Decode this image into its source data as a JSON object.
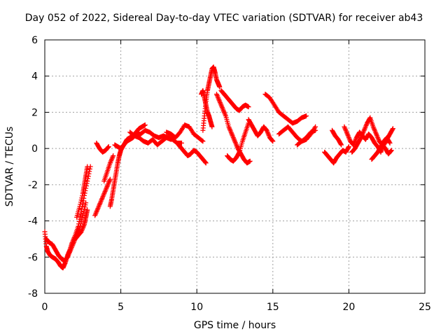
{
  "chart_data": {
    "type": "scatter",
    "title": "Day 052 of 2022, Sidereal Day-to-day VTEC variation (SDTVAR) for receiver ab43",
    "xlabel": "GPS time / hours",
    "ylabel": "SDTVAR / TECUs",
    "xlim": [
      0,
      25
    ],
    "ylim": [
      -8,
      6
    ],
    "xticks": [
      0,
      5,
      10,
      15,
      20,
      25
    ],
    "yticks": [
      -8,
      -6,
      -4,
      -2,
      0,
      2,
      4,
      6
    ],
    "grid": true,
    "marker": "+",
    "series": [
      {
        "name": "SDTVAR",
        "color": "#ff0000",
        "trace": [
          {
            "x": [
              0.0,
              0.1,
              0.2,
              0.35,
              0.5,
              0.7,
              0.9,
              1.05,
              1.2,
              1.35,
              1.5,
              1.65,
              1.8,
              2.0,
              2.2,
              2.4,
              2.6,
              2.8,
              3.0
            ],
            "y": [
              -4.6,
              -5.4,
              -5.7,
              -5.9,
              -6.0,
              -6.1,
              -6.3,
              -6.5,
              -6.6,
              -6.3,
              -5.9,
              -5.6,
              -5.2,
              -4.8,
              -4.3,
              -3.5,
              -2.6,
              -1.8,
              -1.0
            ]
          },
          {
            "x": [
              0.1,
              0.3,
              0.5,
              0.7,
              0.9,
              1.1,
              1.3,
              1.5,
              1.7,
              1.9,
              2.1,
              2.3,
              2.5,
              2.7
            ],
            "y": [
              -5.0,
              -5.2,
              -5.3,
              -5.6,
              -5.9,
              -6.1,
              -6.2,
              -6.0,
              -5.6,
              -5.2,
              -4.8,
              -4.4,
              -3.7,
              -3.0
            ]
          },
          {
            "x": [
              2.0,
              2.2,
              2.4,
              2.6,
              2.7,
              2.8
            ],
            "y": [
              -5.0,
              -4.8,
              -4.6,
              -4.2,
              -3.8,
              -3.4
            ]
          },
          {
            "x": [
              2.1,
              2.3,
              2.5,
              2.6,
              2.7,
              2.8
            ],
            "y": [
              -3.8,
              -3.2,
              -2.5,
              -2.0,
              -1.5,
              -1.0
            ]
          },
          {
            "x": [
              3.3,
              3.5,
              3.7,
              3.9,
              4.1,
              4.3
            ],
            "y": [
              -3.7,
              -3.3,
              -2.9,
              -2.5,
              -2.1,
              -1.7
            ]
          },
          {
            "x": [
              3.4,
              3.6,
              3.8,
              4.0,
              4.2
            ],
            "y": [
              0.3,
              0.0,
              -0.2,
              -0.1,
              0.1
            ]
          },
          {
            "x": [
              3.9,
              4.1,
              4.3,
              4.5
            ],
            "y": [
              -1.8,
              -1.3,
              -0.8,
              -0.4
            ]
          },
          {
            "x": [
              4.3,
              4.4,
              4.5,
              4.6,
              4.7,
              4.8,
              4.9,
              5.0,
              5.2,
              5.4,
              5.6,
              5.8,
              6.0,
              6.2,
              6.4,
              6.6
            ],
            "y": [
              -3.2,
              -2.8,
              -2.3,
              -1.8,
              -1.3,
              -0.8,
              -0.4,
              -0.1,
              0.2,
              0.5,
              0.6,
              0.7,
              0.9,
              1.1,
              1.2,
              1.3
            ]
          },
          {
            "x": [
              4.6,
              4.8,
              5.0,
              5.2,
              5.4,
              5.6,
              5.8,
              6.0,
              6.3,
              6.6,
              6.9,
              7.2,
              7.5,
              7.8,
              8.1,
              8.4,
              8.7,
              9.0
            ],
            "y": [
              0.2,
              0.1,
              0.0,
              0.2,
              0.4,
              0.5,
              0.6,
              0.8,
              0.8,
              1.0,
              0.9,
              0.7,
              0.6,
              0.7,
              0.6,
              0.5,
              0.3,
              0.3
            ]
          },
          {
            "x": [
              5.6,
              5.9,
              6.2,
              6.5,
              6.8,
              7.1,
              7.4,
              7.7,
              8.0,
              8.3
            ],
            "y": [
              0.9,
              0.7,
              0.6,
              0.4,
              0.3,
              0.5,
              0.2,
              0.4,
              0.6,
              0.5
            ]
          },
          {
            "x": [
              8.0,
              8.3,
              8.6,
              8.9,
              9.2,
              9.5,
              9.8,
              10.1,
              10.4
            ],
            "y": [
              0.9,
              0.8,
              0.6,
              0.9,
              1.3,
              1.2,
              0.8,
              0.6,
              0.4
            ]
          },
          {
            "x": [
              8.8,
              9.0,
              9.2,
              9.4,
              9.6,
              9.8,
              10.0,
              10.2,
              10.4,
              10.6
            ],
            "y": [
              0.2,
              0.0,
              -0.2,
              -0.4,
              -0.3,
              -0.1,
              -0.2,
              -0.4,
              -0.6,
              -0.8
            ]
          },
          {
            "x": [
              10.4,
              10.5,
              10.6,
              10.7,
              10.8,
              10.9,
              11.0,
              11.1,
              11.2,
              11.3,
              11.4,
              11.5
            ],
            "y": [
              1.0,
              1.8,
              2.6,
              3.2,
              3.6,
              4.0,
              4.4,
              4.5,
              4.2,
              3.8,
              3.6,
              3.4
            ]
          },
          {
            "x": [
              10.3,
              10.4,
              10.5,
              10.6,
              10.7,
              10.8,
              10.9,
              11.0
            ],
            "y": [
              3.0,
              3.2,
              2.8,
              2.4,
              2.0,
              1.8,
              1.5,
              1.2
            ]
          },
          {
            "x": [
              11.3,
              11.5,
              11.7,
              11.9,
              12.1,
              12.3,
              12.5,
              12.7,
              12.9,
              13.1,
              13.3,
              13.5
            ],
            "y": [
              3.0,
              2.6,
              2.2,
              1.8,
              1.2,
              0.8,
              0.4,
              0.0,
              -0.3,
              -0.6,
              -0.8,
              -0.7
            ]
          },
          {
            "x": [
              11.6,
              11.8,
              12.0,
              12.2,
              12.4,
              12.6,
              12.8,
              13.0,
              13.2,
              13.4
            ],
            "y": [
              3.2,
              3.0,
              2.8,
              2.6,
              2.4,
              2.2,
              2.1,
              2.3,
              2.4,
              2.3
            ]
          },
          {
            "x": [
              12.0,
              12.2,
              12.4,
              12.6,
              12.8,
              13.0,
              13.2,
              13.4
            ],
            "y": [
              -0.4,
              -0.6,
              -0.7,
              -0.5,
              -0.2,
              0.4,
              0.9,
              1.4
            ]
          },
          {
            "x": [
              13.4,
              13.6,
              13.8,
              14.0,
              14.2,
              14.4,
              14.6,
              14.8,
              15.0
            ],
            "y": [
              1.6,
              1.3,
              1.0,
              0.7,
              0.9,
              1.2,
              1.0,
              0.6,
              0.4
            ]
          },
          {
            "x": [
              14.5,
              14.8,
              15.1,
              15.4,
              15.7,
              16.0,
              16.3,
              16.6,
              16.9,
              17.2
            ],
            "y": [
              3.0,
              2.8,
              2.4,
              2.0,
              1.8,
              1.6,
              1.4,
              1.5,
              1.7,
              1.8
            ]
          },
          {
            "x": [
              15.4,
              15.7,
              16.0,
              16.3,
              16.6,
              16.9,
              17.2,
              17.5,
              17.8
            ],
            "y": [
              0.8,
              1.0,
              1.2,
              0.9,
              0.6,
              0.4,
              0.5,
              0.8,
              1.2
            ]
          },
          {
            "x": [
              16.6,
              16.9,
              17.2,
              17.5,
              17.8
            ],
            "y": [
              0.2,
              0.4,
              0.6,
              0.9,
              1.0
            ]
          },
          {
            "x": [
              18.4,
              18.6,
              18.8,
              19.0,
              19.2,
              19.4,
              19.6,
              19.8,
              20.0
            ],
            "y": [
              -0.2,
              -0.4,
              -0.6,
              -0.8,
              -0.5,
              -0.3,
              -0.1,
              -0.2,
              0.1
            ]
          },
          {
            "x": [
              18.9,
              19.1,
              19.3,
              19.5
            ],
            "y": [
              1.0,
              0.7,
              0.5,
              0.2
            ]
          },
          {
            "x": [
              19.7,
              19.9,
              20.1,
              20.3,
              20.5,
              20.7,
              20.9,
              21.1,
              21.3,
              21.5,
              21.7,
              21.9,
              22.1,
              22.3,
              22.5,
              22.7,
              22.9
            ],
            "y": [
              1.2,
              0.8,
              0.4,
              0.2,
              0.6,
              0.9,
              0.7,
              0.5,
              0.8,
              0.6,
              0.3,
              0.1,
              -0.2,
              0.2,
              0.5,
              0.8,
              1.1
            ]
          },
          {
            "x": [
              20.2,
              20.4,
              20.6,
              20.8,
              21.0,
              21.2,
              21.4,
              21.6,
              21.8,
              22.0,
              22.2,
              22.4,
              22.6,
              22.8
            ],
            "y": [
              -0.2,
              0.0,
              0.3,
              0.6,
              1.0,
              1.4,
              1.7,
              1.2,
              0.8,
              0.4,
              0.2,
              0.0,
              -0.3,
              -0.1
            ]
          },
          {
            "x": [
              21.5,
              21.7,
              21.9,
              22.1,
              22.3,
              22.5,
              22.7
            ],
            "y": [
              -0.6,
              -0.4,
              -0.2,
              0.1,
              0.4,
              0.6,
              0.3
            ]
          }
        ]
      }
    ]
  }
}
